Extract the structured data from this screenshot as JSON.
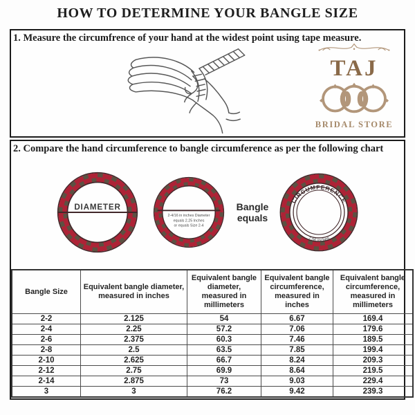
{
  "page": {
    "title": "HOW TO DETERMINE YOUR BANGLE SIZE"
  },
  "step1": {
    "text": "1. Measure the circumfrence of your hand at the widest point using tape measure."
  },
  "logo": {
    "name": "TAJ",
    "subtitle": "BRIDAL STORE"
  },
  "step2": {
    "text": "2. Compare the hand circumference to bangle circumference as per the following chart"
  },
  "diagram": {
    "diameter_label": "DIAMETER",
    "note_line1": "2-4/16 in inches Diameter",
    "note_line2": "equals 2.25 Inches",
    "note_line3": "or equals Size 2-4",
    "equals_label": "Bangle\nequals",
    "circumference_label": "CIRCUMFERENCE",
    "circumference_value": "7.06 inches"
  },
  "colors": {
    "bangle_red": "#ad2336",
    "bangle_dark": "#5c5142",
    "logo_brown": "#8a6a49",
    "logo_tan": "#b2967a"
  },
  "table": {
    "headers": [
      "Bangle Size",
      "Equivalent bangle diameter, measured in inches",
      "Equivalent bangle diameter, measured in millimeters",
      "Equivalent bangle circumference, measured in inches",
      "Equivalent bangle circumference, measured in millimeters"
    ],
    "rows": [
      [
        "2-2",
        "2.125",
        "54",
        "6.67",
        "169.4"
      ],
      [
        "2-4",
        "2.25",
        "57.2",
        "7.06",
        "179.6"
      ],
      [
        "2-6",
        "2.375",
        "60.3",
        "7.46",
        "189.5"
      ],
      [
        "2-8",
        "2.5",
        "63.5",
        "7.85",
        "199.4"
      ],
      [
        "2-10",
        "2.625",
        "66.7",
        "8.24",
        "209.3"
      ],
      [
        "2-12",
        "2.75",
        "69.9",
        "8.64",
        "219.5"
      ],
      [
        "2-14",
        "2.875",
        "73",
        "9.03",
        "229.4"
      ],
      [
        "3",
        "3",
        "76.2",
        "9.42",
        "239.3"
      ]
    ]
  }
}
